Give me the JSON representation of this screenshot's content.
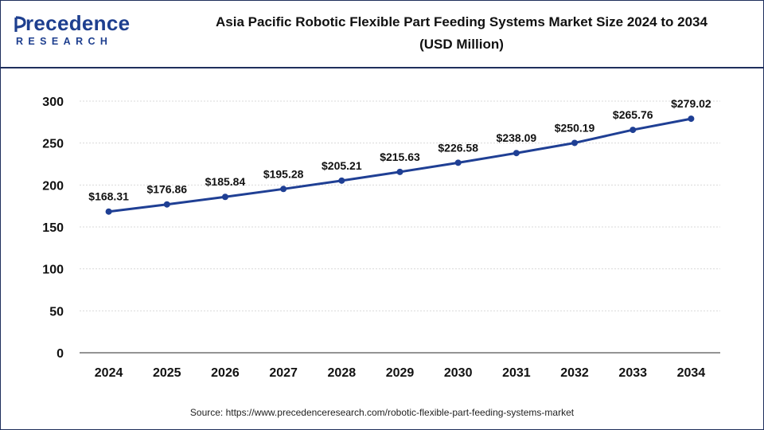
{
  "brand": {
    "logo_word": "recedence",
    "logo_initial": "P",
    "logo_sub": "RESEARCH"
  },
  "header": {
    "title_line1": "Asia Pacific Robotic Flexible Part Feeding Systems Market Size 2024 to 2034",
    "title_line2": "(USD Million)"
  },
  "footer": {
    "source": "Source: https://www.precedenceresearch.com/robotic-flexible-part-feeding-systems-market"
  },
  "colors": {
    "line": "#1f3f94",
    "brand": "#1e3f8f",
    "grid": "#d9d9d9"
  },
  "chart_data": {
    "type": "line",
    "title": "Asia Pacific Robotic Flexible Part Feeding Systems Market Size 2024 to 2034 (USD Million)",
    "categories": [
      "2024",
      "2025",
      "2026",
      "2027",
      "2028",
      "2029",
      "2030",
      "2031",
      "2032",
      "2033",
      "2034"
    ],
    "series": [
      {
        "values": [
          168.31,
          176.86,
          185.84,
          195.28,
          205.21,
          215.63,
          226.58,
          238.09,
          250.19,
          265.76,
          279.02
        ],
        "labels": [
          "$168.31",
          "$176.86",
          "$185.84",
          "$195.28",
          "$205.21",
          "$215.63",
          "$226.58",
          "$238.09",
          "$250.19",
          "$265.76",
          "$279.02"
        ]
      }
    ],
    "ylim": [
      0,
      300
    ],
    "yticks": [
      0,
      50,
      100,
      150,
      200,
      250,
      300
    ],
    "grid": true,
    "xlabel": "",
    "ylabel": ""
  }
}
